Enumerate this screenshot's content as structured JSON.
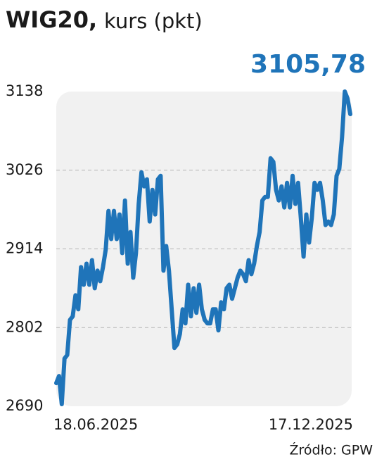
{
  "chart_data": {
    "type": "line",
    "title": "WIG20,",
    "subtitle": "kurs (pkt)",
    "source": "Źródło: GPW",
    "annotation": {
      "label": "3105,78",
      "value": 3105.78
    },
    "categories": [
      "18.06.2025",
      null,
      null,
      null,
      null,
      null,
      null,
      null,
      null,
      null,
      null,
      null,
      null,
      null,
      null,
      null,
      null,
      null,
      null,
      null,
      null,
      null,
      null,
      null,
      null,
      null,
      null,
      null,
      null,
      null,
      null,
      null,
      null,
      null,
      null,
      null,
      null,
      null,
      null,
      null,
      null,
      null,
      null,
      null,
      null,
      null,
      null,
      null,
      null,
      null,
      null,
      null,
      null,
      null,
      null,
      null,
      null,
      null,
      null,
      null,
      null,
      null,
      null,
      null,
      null,
      null,
      null,
      null,
      null,
      null,
      null,
      null,
      null,
      null,
      null,
      null,
      null,
      null,
      null,
      null,
      null,
      null,
      null,
      null,
      null,
      null,
      null,
      null,
      null,
      null,
      null,
      null,
      null,
      null,
      null,
      null,
      null,
      null,
      null,
      null,
      null,
      null,
      null,
      null,
      null,
      null,
      null,
      "17.12.2025"
    ],
    "series": [
      {
        "name": "WIG20",
        "color": "#1f74b9",
        "values": [
          2723,
          2733,
          2693,
          2758,
          2763,
          2813,
          2818,
          2848,
          2828,
          2888,
          2863,
          2893,
          2863,
          2898,
          2858,
          2883,
          2868,
          2888,
          2913,
          2968,
          2928,
          2968,
          2928,
          2963,
          2908,
          2983,
          2893,
          2938,
          2873,
          2908,
          2978,
          3023,
          3003,
          3013,
          2953,
          2998,
          2963,
          3013,
          3018,
          2883,
          2918,
          2883,
          2828,
          2773,
          2778,
          2793,
          2828,
          2808,
          2863,
          2818,
          2858,
          2823,
          2863,
          2828,
          2813,
          2808,
          2808,
          2828,
          2828,
          2798,
          2838,
          2828,
          2858,
          2863,
          2843,
          2858,
          2873,
          2883,
          2878,
          2868,
          2898,
          2878,
          2893,
          2918,
          2938,
          2983,
          2988,
          2988,
          3043,
          3038,
          2998,
          2983,
          3003,
          2973,
          3008,
          2973,
          3018,
          2978,
          3008,
          2958,
          2903,
          2963,
          2923,
          2958,
          3008,
          2998,
          3008,
          2983,
          2948,
          2953,
          2948,
          2963,
          3018,
          3028,
          3073,
          3138,
          3128,
          3105.78
        ]
      }
    ],
    "ylim": [
      2690,
      3138
    ],
    "yticks": [
      2690,
      2802,
      2914,
      3026,
      3138
    ],
    "grid": true
  }
}
